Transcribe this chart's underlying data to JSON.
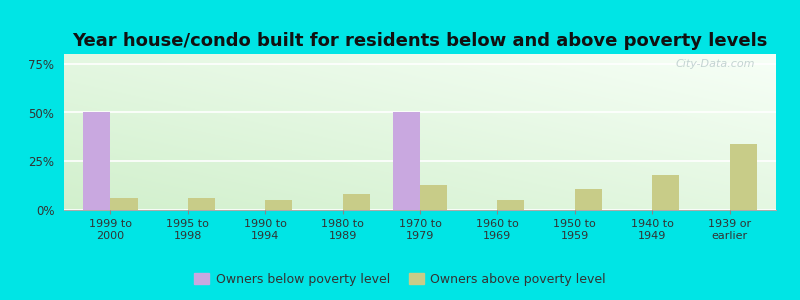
{
  "title": "Year house/condo built for residents below and above poverty levels",
  "categories": [
    "1999 to\n2000",
    "1995 to\n1998",
    "1990 to\n1994",
    "1980 to\n1989",
    "1970 to\n1979",
    "1960 to\n1969",
    "1950 to\n1959",
    "1940 to\n1949",
    "1939 or\nearlier"
  ],
  "below_poverty": [
    50,
    0,
    0,
    0,
    50,
    0,
    0,
    0,
    0
  ],
  "above_poverty": [
    6,
    6,
    5,
    8,
    13,
    5,
    11,
    18,
    34
  ],
  "below_color": "#c9a8e0",
  "above_color": "#c8cc88",
  "bg_color": "#00e5e5",
  "title_fontsize": 13,
  "ylabel_ticks": [
    0,
    25,
    50,
    75
  ],
  "ylabel_labels": [
    "0%",
    "25%",
    "50%",
    "75%"
  ],
  "ylim": [
    0,
    80
  ],
  "bar_width": 0.35,
  "legend_below_label": "Owners below poverty level",
  "legend_above_label": "Owners above poverty level"
}
